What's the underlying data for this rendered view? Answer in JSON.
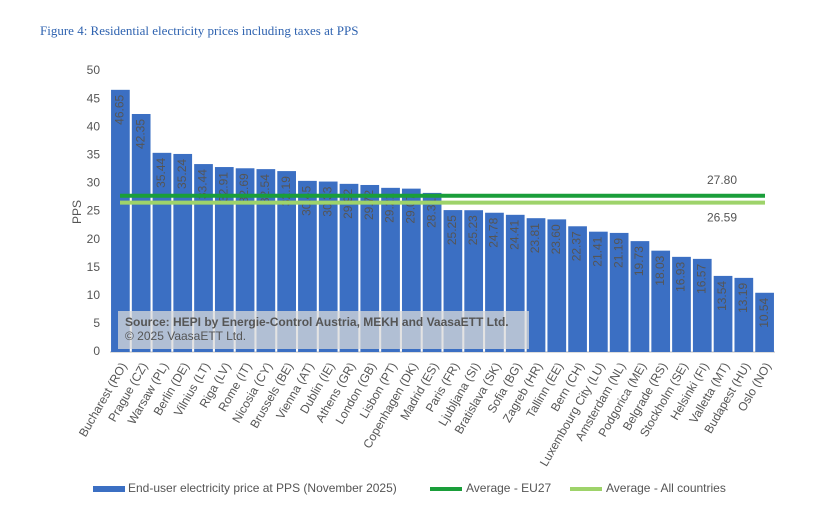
{
  "chart_data": {
    "type": "bar",
    "title": "Figure 4: Residential electricity prices including taxes at PPS",
    "y_label": "PPS",
    "categories": [
      "Bucharest (RO)",
      "Prague (CZ)",
      "Warsaw (PL)",
      "Berlin (DE)",
      "Vilnius (LT)",
      "Riga (LV)",
      "Rome (IT)",
      "Nicosia (CY)",
      "Brussels (BE)",
      "Vienna (AT)",
      "Dublin (IE)",
      "Athens (GR)",
      "London (GB)",
      "Lisbon (PT)",
      "Copenhagen (DK)",
      "Madrid (ES)",
      "Paris (FR)",
      "Ljubljana (SI)",
      "Bratislava (SK)",
      "Sofia (BG)",
      "Zagreb (HR)",
      "Tallinn (EE)",
      "Bern (CH)",
      "Luxembourg City (LU)",
      "Amsterdam (NL)",
      "Podgorica (ME)",
      "Belgrade (RS)",
      "Stockholm (SE)",
      "Helsinki (FI)",
      "Valletta (MT)",
      "Budapest (HU)",
      "Oslo (NO)"
    ],
    "series": [
      {
        "name": "End-user electricity price at PPS (November 2025)",
        "color": "#3b6fc3",
        "values": [
          46.65,
          42.35,
          35.44,
          35.24,
          33.44,
          32.91,
          32.69,
          32.54,
          32.19,
          30.45,
          30.33,
          29.92,
          29.72,
          29.21,
          29.07,
          28.31,
          25.25,
          25.23,
          24.78,
          24.41,
          23.81,
          23.6,
          22.37,
          21.41,
          21.19,
          19.73,
          18.03,
          16.93,
          16.57,
          13.54,
          13.19,
          10.54
        ],
        "value_labels": [
          "46.65",
          "42.35",
          "35.44",
          "35.24",
          "33.44",
          "32.91",
          "32.69",
          "32.54",
          "32.19",
          "30.45",
          "30.33",
          "29.92",
          "29.72",
          "29.21",
          "29.07",
          "28.31",
          "25.25",
          "25.23",
          "24.78",
          "24.41",
          "23.81",
          "23.60",
          "22.37",
          "21.41",
          "21.19",
          "19.73",
          "18.03",
          "16.93",
          "16.57",
          "13.54",
          "13.19",
          "10.54"
        ]
      }
    ],
    "averages": [
      {
        "name": "Average - EU27",
        "color": "#1a9e3a",
        "value": 27.8,
        "value_label": "27.80"
      },
      {
        "name": "Average - All countries",
        "color": "#9ed36a",
        "value": 26.59,
        "value_label": "26.59"
      }
    ],
    "annotations": [
      "Source: HEPI by Energie-Control Austria, MEKH and VaasaETT Ltd.",
      "© 2025 VaasaETT Ltd."
    ],
    "ylim": [
      0,
      50
    ],
    "yticks": [
      0,
      5,
      10,
      15,
      20,
      25,
      30,
      35,
      40,
      45,
      50
    ],
    "grid": false
  }
}
